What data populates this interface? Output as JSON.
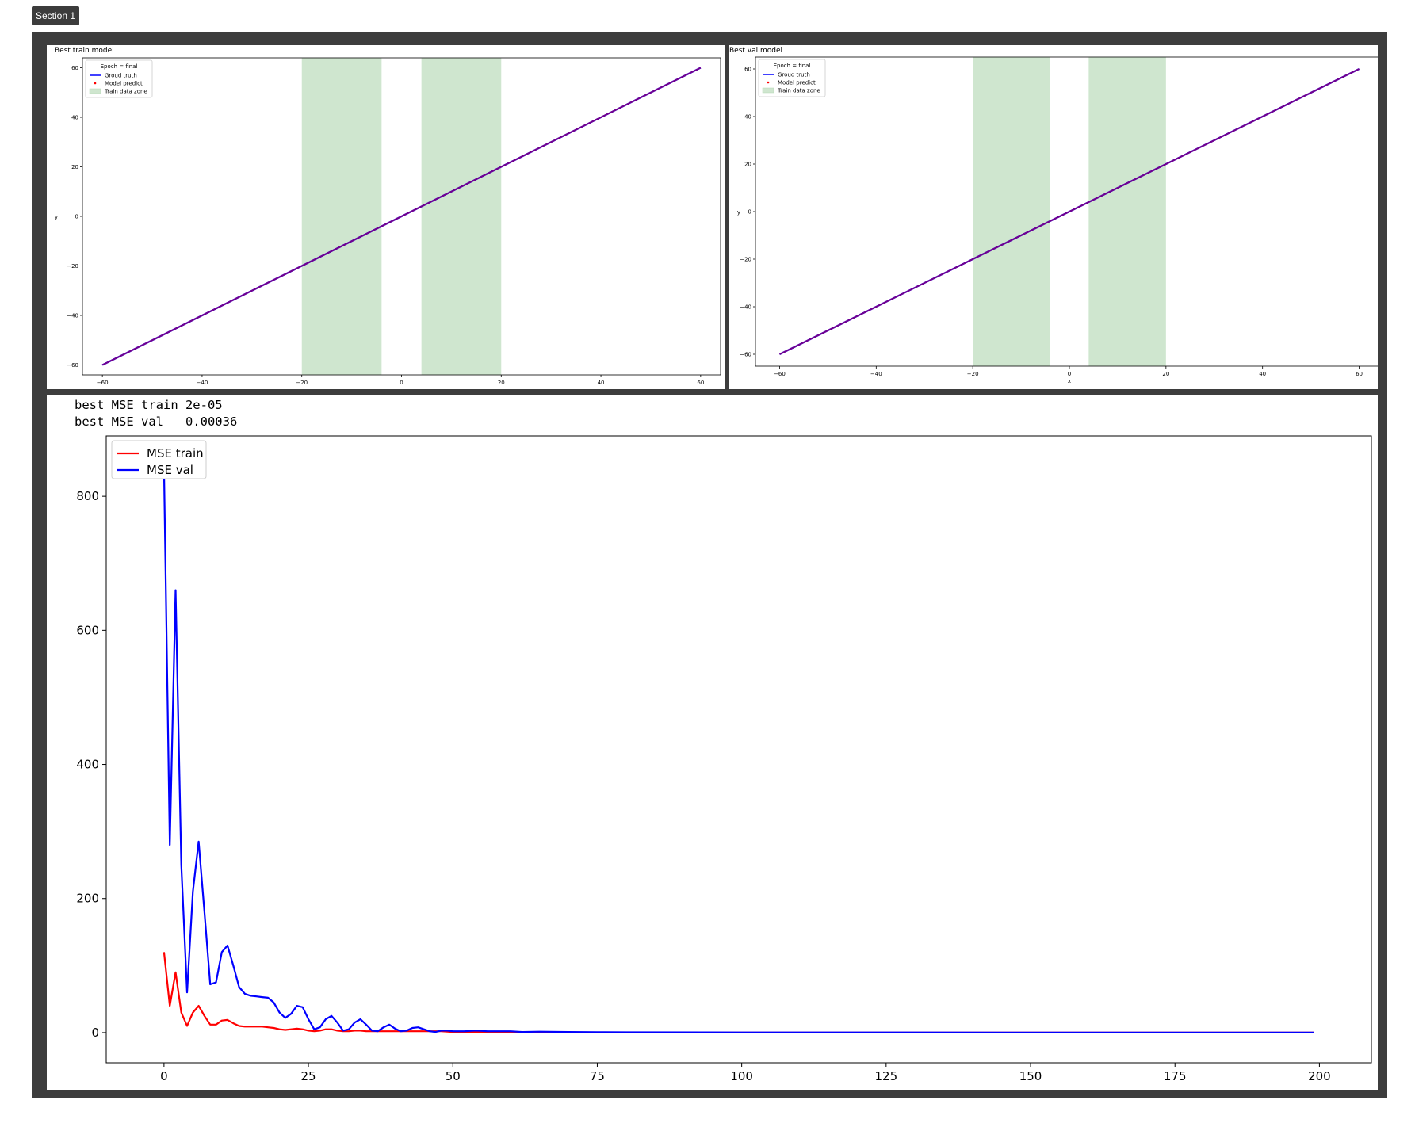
{
  "section": {
    "label": "Section 1"
  },
  "colors": {
    "frame": "#3d3d3d",
    "ground_truth": "#0000ff",
    "model_predict": "#ff0000",
    "predict_overlay": "#800080",
    "train_zone": "#cfe6cf",
    "mse_train": "#ff0000",
    "mse_val": "#0000ff"
  },
  "summary": {
    "train_text": "best MSE train 2e-05",
    "val_text": "best MSE val   0.00036"
  },
  "chart_data": [
    {
      "id": "best-train",
      "type": "line",
      "title": "Best train model",
      "xlabel": "",
      "ylabel": "y",
      "xlim": [
        -64,
        64
      ],
      "ylim": [
        -64,
        64
      ],
      "xticks": [
        -60,
        -40,
        -20,
        0,
        20,
        40,
        60
      ],
      "yticks": [
        -60,
        -40,
        -20,
        0,
        20,
        40,
        60
      ],
      "legend": {
        "title": "Epoch = final",
        "placement": "top-left",
        "entries": [
          "Groud truth",
          "Model predict",
          "Train data zone"
        ]
      },
      "train_zones": [
        [
          -20,
          -4
        ],
        [
          4,
          20
        ]
      ],
      "series": [
        {
          "name": "Groud truth",
          "style": "line",
          "x": [
            -60,
            60
          ],
          "y": [
            -60,
            60
          ]
        },
        {
          "name": "Model predict",
          "style": "points",
          "x": [
            -60,
            60
          ],
          "y": [
            -60,
            60
          ]
        }
      ]
    },
    {
      "id": "best-val",
      "type": "line",
      "title": "Best val model",
      "xlabel": "x",
      "ylabel": "y",
      "xlim": [
        -65,
        65
      ],
      "ylim": [
        -65,
        65
      ],
      "xticks": [
        -60,
        -40,
        -20,
        0,
        20,
        40,
        60
      ],
      "yticks": [
        -60,
        -40,
        -20,
        0,
        20,
        40,
        60
      ],
      "legend": {
        "title": "Epoch = final",
        "placement": "top-left",
        "entries": [
          "Groud truth",
          "Model predict",
          "Train data zone"
        ]
      },
      "train_zones": [
        [
          -20,
          -4
        ],
        [
          4,
          20
        ]
      ],
      "series": [
        {
          "name": "Groud truth",
          "style": "line",
          "x": [
            -60,
            60
          ],
          "y": [
            -60,
            60
          ]
        },
        {
          "name": "Model predict",
          "style": "points",
          "x": [
            -60,
            60
          ],
          "y": [
            -60,
            60
          ]
        }
      ]
    },
    {
      "id": "mse-history",
      "type": "line",
      "title": "",
      "xlabel": "",
      "ylabel": "",
      "xlim": [
        -10,
        209
      ],
      "ylim": [
        -45,
        890
      ],
      "xticks": [
        0,
        25,
        50,
        75,
        100,
        125,
        150,
        175,
        200
      ],
      "yticks": [
        0,
        200,
        400,
        600,
        800
      ],
      "legend": {
        "placement": "top-left",
        "entries": [
          "MSE train",
          "MSE val"
        ]
      },
      "series": [
        {
          "name": "MSE train",
          "x": [
            0,
            1,
            2,
            3,
            4,
            5,
            6,
            7,
            8,
            9,
            10,
            11,
            12,
            13,
            14,
            15,
            16,
            17,
            18,
            19,
            20,
            21,
            22,
            23,
            24,
            25,
            26,
            27,
            28,
            29,
            30,
            31,
            32,
            33,
            34,
            35,
            36,
            37,
            38,
            39,
            40,
            42,
            44,
            46,
            48,
            50,
            55,
            60,
            70,
            80,
            100,
            150,
            199
          ],
          "y": [
            120,
            40,
            90,
            30,
            10,
            30,
            40,
            25,
            12,
            12,
            18,
            19,
            14,
            10,
            9,
            9,
            9,
            9,
            8,
            7,
            5,
            4,
            5,
            6,
            5,
            3,
            2,
            3,
            5,
            5,
            3,
            2,
            2,
            3,
            3,
            2,
            2,
            2,
            2,
            2,
            2,
            2,
            2,
            2,
            2,
            1,
            1,
            0.5,
            0.3,
            0.2,
            0.1,
            0.05,
            0.02
          ]
        },
        {
          "name": "MSE val",
          "x": [
            0,
            1,
            2,
            3,
            4,
            5,
            6,
            7,
            8,
            9,
            10,
            11,
            12,
            13,
            14,
            15,
            16,
            17,
            18,
            19,
            20,
            21,
            22,
            23,
            24,
            25,
            26,
            27,
            28,
            29,
            30,
            31,
            32,
            33,
            34,
            35,
            36,
            37,
            38,
            39,
            40,
            41,
            42,
            43,
            44,
            45,
            46,
            47,
            48,
            49,
            50,
            52,
            54,
            56,
            58,
            60,
            62,
            65,
            70,
            75,
            80,
            100,
            150,
            199
          ],
          "y": [
            840,
            280,
            660,
            250,
            60,
            210,
            285,
            180,
            72,
            75,
            120,
            130,
            100,
            68,
            58,
            55,
            54,
            53,
            52,
            45,
            30,
            22,
            28,
            40,
            38,
            20,
            5,
            8,
            20,
            25,
            15,
            3,
            5,
            15,
            20,
            12,
            3,
            2,
            8,
            12,
            6,
            2,
            3,
            7,
            8,
            5,
            2,
            1,
            3,
            3,
            2,
            2,
            3,
            2,
            2,
            2,
            1,
            1.5,
            1,
            0.8,
            0.5,
            0.3,
            0.1,
            0.05
          ]
        }
      ]
    }
  ]
}
